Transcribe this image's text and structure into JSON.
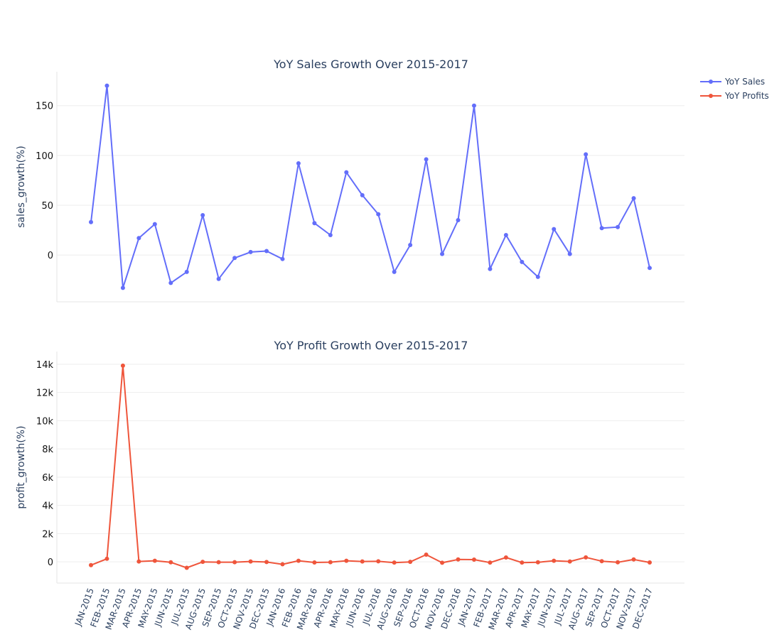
{
  "chart_data": {
    "type": "line",
    "x": [
      "JAN-2015",
      "FEB-2015",
      "MAR-2015",
      "APR-2015",
      "MAY-2015",
      "JUN-2015",
      "JUL-2015",
      "AUG-2015",
      "SEP-2015",
      "OCT-2015",
      "NOV-2015",
      "DEC-2015",
      "JAN-2016",
      "FEB-2016",
      "MAR-2016",
      "APR-2016",
      "MAY-2016",
      "JUN-2016",
      "JUL-2016",
      "AUG-2016",
      "SEP-2016",
      "OCT-2016",
      "NOV-2016",
      "DEC-2016",
      "JAN-2017",
      "FEB-2017",
      "MAR-2017",
      "APR-2017",
      "MAY-2017",
      "JUN-2017",
      "JUL-2017",
      "AUG-2017",
      "SEP-2017",
      "OCT-2017",
      "NOV-2017",
      "DEC-2017"
    ],
    "legend_position": "top-right",
    "grid": true,
    "subplots": [
      {
        "title": "YoY Sales Growth Over 2015-2017",
        "ylabel": "sales_growth(%)",
        "ylim": [
          -47,
          184
        ],
        "yticks": [
          0,
          50,
          100,
          150
        ],
        "ytick_labels": [
          "0",
          "50",
          "100",
          "150"
        ],
        "series": [
          {
            "name": "YoY Sales",
            "color": "#636efa",
            "values": [
              33,
              170,
              -33,
              17,
              31,
              -28,
              -17,
              40,
              -24,
              -3,
              3,
              4,
              -4,
              92,
              32,
              20,
              83,
              60,
              41,
              -17,
              10,
              96,
              1,
              35,
              150,
              -14,
              20,
              -7,
              -22,
              26,
              1,
              101,
              27,
              28,
              57,
              -13
            ]
          }
        ]
      },
      {
        "title": "YoY Profit Growth Over 2015-2017",
        "ylabel": "profit_growth(%)",
        "ylim": [
          -1500,
          14900
        ],
        "yticks": [
          0,
          2000,
          4000,
          6000,
          8000,
          10000,
          12000,
          14000
        ],
        "ytick_labels": [
          "0",
          "2k",
          "4k",
          "6k",
          "8k",
          "10k",
          "12k",
          "14k"
        ],
        "series": [
          {
            "name": "YoY Profits",
            "color": "#ef553b",
            "values": [
              -230,
              220,
              13900,
              30,
              80,
              -30,
              -420,
              0,
              -20,
              -20,
              30,
              -10,
              -170,
              80,
              -40,
              -20,
              80,
              30,
              40,
              -50,
              0,
              510,
              -60,
              170,
              160,
              -50,
              310,
              -50,
              -30,
              80,
              30,
              320,
              50,
              -30,
              170,
              -40
            ]
          }
        ]
      }
    ]
  }
}
